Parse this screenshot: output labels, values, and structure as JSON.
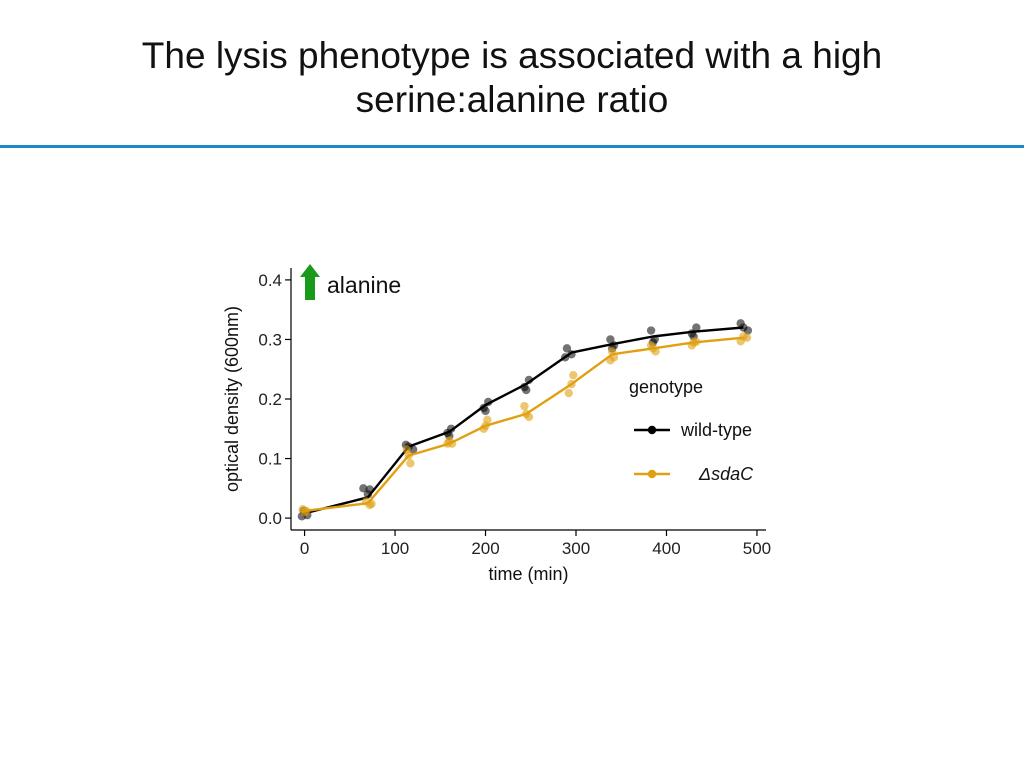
{
  "slide": {
    "title_line1": "The lysis phenotype is associated with a high",
    "title_line2": "serine:alanine ratio",
    "accent_color": "#1f86c8"
  },
  "chart_data": {
    "type": "line",
    "xlabel": "time (min)",
    "ylabel": "optical density (600nm)",
    "xlim": [
      -15,
      510
    ],
    "ylim": [
      -0.02,
      0.42
    ],
    "x_ticks": [
      0,
      100,
      200,
      300,
      400,
      500
    ],
    "y_ticks": [
      0.0,
      0.1,
      0.2,
      0.3,
      0.4
    ],
    "x_tick_labels": [
      "0",
      "100",
      "200",
      "300",
      "400",
      "500"
    ],
    "y_tick_labels": [
      "0.0",
      "0.1",
      "0.2",
      "0.3",
      "0.4"
    ],
    "annotation": {
      "text": "alanine",
      "icon": "up-arrow-icon",
      "color": "#1a9a1a"
    },
    "legend": {
      "title": "genotype",
      "placement": "right"
    },
    "grid": false,
    "series": [
      {
        "name": "wild-type",
        "color": "#000000",
        "x": [
          0,
          70,
          115,
          160,
          200,
          245,
          295,
          340,
          385,
          430,
          485
        ],
        "y": [
          0.008,
          0.035,
          0.12,
          0.145,
          0.19,
          0.225,
          0.278,
          0.292,
          0.305,
          0.313,
          0.32
        ],
        "points": [
          [
            -3,
            0.003
          ],
          [
            3,
            0.005
          ],
          [
            -1,
            0.012
          ],
          [
            65,
            0.05
          ],
          [
            72,
            0.048
          ],
          [
            70,
            0.04
          ],
          [
            112,
            0.123
          ],
          [
            115,
            0.12
          ],
          [
            120,
            0.115
          ],
          [
            158,
            0.143
          ],
          [
            162,
            0.15
          ],
          [
            160,
            0.138
          ],
          [
            198,
            0.185
          ],
          [
            203,
            0.195
          ],
          [
            200,
            0.18
          ],
          [
            243,
            0.22
          ],
          [
            248,
            0.232
          ],
          [
            245,
            0.215
          ],
          [
            290,
            0.285
          ],
          [
            295,
            0.275
          ],
          [
            288,
            0.27
          ],
          [
            338,
            0.3
          ],
          [
            342,
            0.29
          ],
          [
            340,
            0.285
          ],
          [
            383,
            0.315
          ],
          [
            387,
            0.3
          ],
          [
            385,
            0.295
          ],
          [
            428,
            0.31
          ],
          [
            433,
            0.32
          ],
          [
            430,
            0.305
          ],
          [
            482,
            0.327
          ],
          [
            490,
            0.315
          ],
          [
            485,
            0.32
          ]
        ]
      },
      {
        "name": "ΔsdaC",
        "color": "#e0a010",
        "x": [
          0,
          70,
          115,
          160,
          200,
          245,
          295,
          340,
          385,
          430,
          485
        ],
        "y": [
          0.012,
          0.025,
          0.105,
          0.125,
          0.155,
          0.175,
          0.225,
          0.275,
          0.285,
          0.295,
          0.303
        ],
        "points": [
          [
            -2,
            0.015
          ],
          [
            2,
            0.012
          ],
          [
            0,
            0.01
          ],
          [
            68,
            0.028
          ],
          [
            72,
            0.022
          ],
          [
            74,
            0.024
          ],
          [
            113,
            0.115
          ],
          [
            117,
            0.092
          ],
          [
            115,
            0.105
          ],
          [
            158,
            0.125
          ],
          [
            163,
            0.125
          ],
          [
            160,
            0.13
          ],
          [
            198,
            0.15
          ],
          [
            202,
            0.165
          ],
          [
            200,
            0.155
          ],
          [
            243,
            0.188
          ],
          [
            248,
            0.17
          ],
          [
            245,
            0.175
          ],
          [
            292,
            0.21
          ],
          [
            297,
            0.24
          ],
          [
            295,
            0.225
          ],
          [
            338,
            0.265
          ],
          [
            342,
            0.27
          ],
          [
            340,
            0.28
          ],
          [
            383,
            0.29
          ],
          [
            388,
            0.28
          ],
          [
            385,
            0.285
          ],
          [
            428,
            0.29
          ],
          [
            433,
            0.296
          ],
          [
            430,
            0.295
          ],
          [
            482,
            0.297
          ],
          [
            489,
            0.303
          ],
          [
            485,
            0.305
          ]
        ]
      }
    ]
  }
}
